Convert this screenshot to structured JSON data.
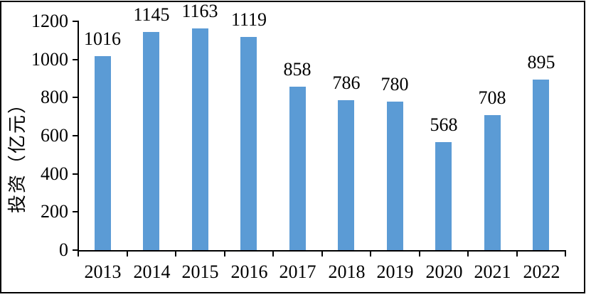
{
  "chart_data": {
    "type": "bar",
    "categories": [
      "2013",
      "2014",
      "2015",
      "2016",
      "2017",
      "2018",
      "2019",
      "2020",
      "2021",
      "2022"
    ],
    "values": [
      1016,
      1145,
      1163,
      1119,
      858,
      786,
      780,
      568,
      708,
      895
    ],
    "title": "",
    "xlabel": "",
    "ylabel": "投资（亿元）",
    "ylim": [
      0,
      1200
    ],
    "yticks": [
      0,
      200,
      400,
      600,
      800,
      1000,
      1200
    ],
    "grid": false,
    "legend": null,
    "data_labels": true,
    "bar_color": "#5B9BD5",
    "axis_color": "#000000",
    "text_color": "#000000",
    "background_color": "#ffffff"
  }
}
